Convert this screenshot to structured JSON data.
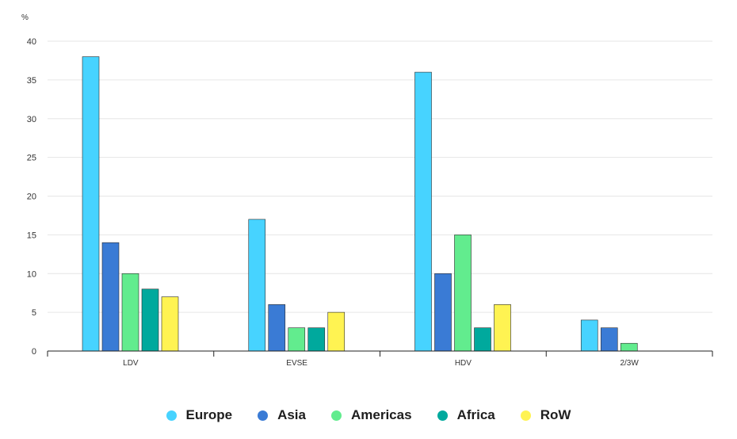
{
  "chart_data": {
    "type": "bar",
    "unit_label": "%",
    "ylim": [
      0,
      40
    ],
    "yticks": [
      0,
      5,
      10,
      15,
      20,
      25,
      30,
      35,
      40
    ],
    "grid": true,
    "legend_position": "bottom",
    "categories": [
      "LDV",
      "EVSE",
      "HDV",
      "2/3W"
    ],
    "series": [
      {
        "name": "Europe",
        "color": "#47d3ff",
        "values": [
          38,
          17,
          36,
          4
        ]
      },
      {
        "name": "Asia",
        "color": "#3a7bd5",
        "values": [
          14,
          6,
          10,
          3
        ]
      },
      {
        "name": "Americas",
        "color": "#62ec8e",
        "values": [
          10,
          3,
          15,
          1
        ]
      },
      {
        "name": "Africa",
        "color": "#00a99d",
        "values": [
          8,
          3,
          3,
          0
        ]
      },
      {
        "name": "RoW",
        "color": "#fff352",
        "values": [
          7,
          5,
          6,
          0
        ]
      }
    ]
  }
}
